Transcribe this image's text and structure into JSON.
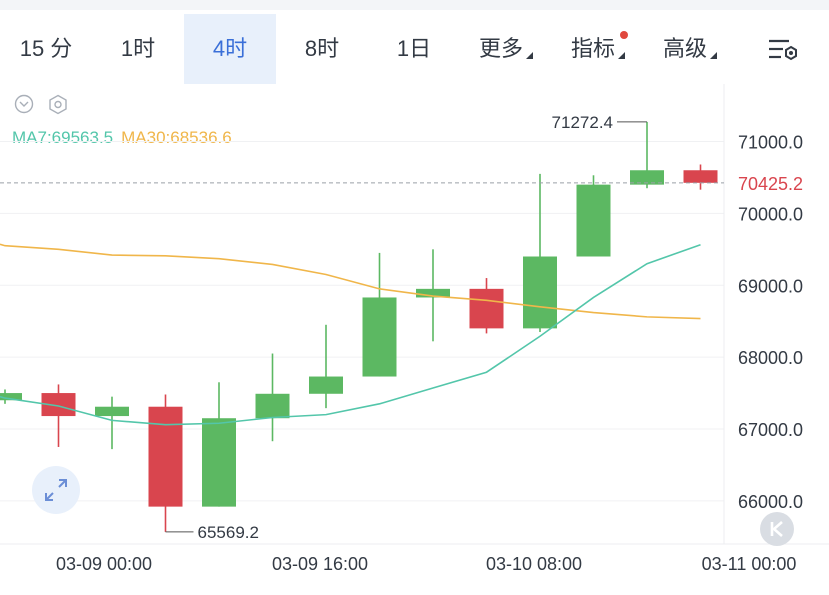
{
  "tabs": [
    {
      "label": "15 分"
    },
    {
      "label": "1时"
    },
    {
      "label": "4时",
      "active": true
    },
    {
      "label": "8时"
    },
    {
      "label": "1日"
    },
    {
      "label": "更多"
    },
    {
      "label": "指标"
    },
    {
      "label": "高级"
    }
  ],
  "indicators": {
    "ma7": "MA7:69563.5",
    "ma30": "MA30:68536.6"
  },
  "colors": {
    "up": "#5cb862",
    "down": "#d9454e",
    "ma7": "#53c6aa",
    "ma30": "#f0b64a",
    "accent": "#3a6fd8"
  },
  "icons": [
    "settings-sliders-icon",
    "collapse-icon",
    "hexagon-settings-icon",
    "expand-icon",
    "k-icon"
  ],
  "chart_data": {
    "type": "candlestick",
    "ylim": [
      65400,
      71800
    ],
    "yticks": [
      66000,
      67000,
      68000,
      69000,
      70000,
      71000
    ],
    "ytick_labels": [
      "66000.0",
      "67000.0",
      "68000.0",
      "69000.0",
      "70000.0",
      "71000.0"
    ],
    "xtick_labels": [
      "03-09 00:00",
      "03-09 16:00",
      "03-10 08:00",
      "03-11 00:00"
    ],
    "current_price": "70425.2",
    "max_label": "71272.4",
    "min_label": "65569.2",
    "candles": [
      {
        "open": 67400,
        "close": 67500,
        "high": 67550,
        "low": 67350
      },
      {
        "open": 67500,
        "close": 67180,
        "high": 67620,
        "low": 66750
      },
      {
        "open": 67180,
        "close": 67310,
        "high": 67450,
        "low": 66720
      },
      {
        "open": 67310,
        "close": 65920,
        "high": 67480,
        "low": 65569.2
      },
      {
        "open": 65920,
        "close": 67150,
        "high": 67650,
        "low": 65920
      },
      {
        "open": 67150,
        "close": 67490,
        "high": 68050,
        "low": 66830
      },
      {
        "open": 67490,
        "close": 67730,
        "high": 68450,
        "low": 67290
      },
      {
        "open": 67730,
        "close": 68830,
        "high": 69450,
        "low": 67730
      },
      {
        "open": 68830,
        "close": 68950,
        "high": 69500,
        "low": 68220
      },
      {
        "open": 68950,
        "close": 68400,
        "high": 69100,
        "low": 68330
      },
      {
        "open": 68400,
        "close": 69400,
        "high": 70550,
        "low": 68350
      },
      {
        "open": 69400,
        "close": 70400,
        "high": 70530,
        "low": 69400
      },
      {
        "open": 70400,
        "close": 70600,
        "high": 71272.4,
        "low": 70350
      },
      {
        "open": 70600,
        "close": 70425.2,
        "high": 70680,
        "low": 70330
      }
    ],
    "ma7": [
      67450,
      67430,
      67320,
      67120,
      67060,
      67080,
      67160,
      67200,
      67350,
      67570,
      67790,
      68290,
      68830,
      69300,
      69563.5
    ],
    "ma30": [
      69570,
      69550,
      69500,
      69420,
      69410,
      69370,
      69290,
      69150,
      68950,
      68850,
      68790,
      68700,
      68620,
      68560,
      68536.6
    ]
  }
}
